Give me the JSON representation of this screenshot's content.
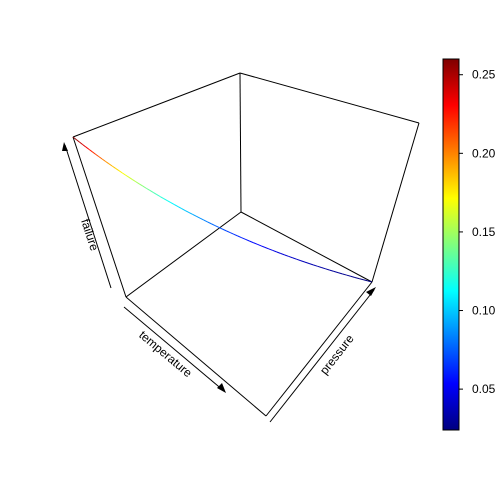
{
  "chart_data": {
    "type": "line",
    "title": "",
    "axes": {
      "x": {
        "label": "temperature"
      },
      "y": {
        "label": "pressure"
      },
      "z": {
        "label": "failure"
      }
    },
    "box": true,
    "grid": false,
    "series": [
      {
        "x": [
          0.0,
          0.0625,
          0.125,
          0.1875,
          0.25,
          0.3125,
          0.375,
          0.4375,
          0.5,
          0.5625,
          0.625,
          0.6875,
          0.75,
          0.8125,
          0.875,
          0.9375,
          1.0
        ],
        "failure": [
          0.26,
          0.228,
          0.198,
          0.172,
          0.148,
          0.127,
          0.109,
          0.093,
          0.079,
          0.067,
          0.057,
          0.049,
          0.042,
          0.036,
          0.031,
          0.027,
          0.024
        ]
      }
    ],
    "colorbar": {
      "palette": "jet",
      "range": [
        0.024,
        0.26
      ],
      "ticks": [
        "0.05",
        "0.10",
        "0.15",
        "0.20",
        "0.25"
      ],
      "tick_values": [
        0.05,
        0.1,
        0.15,
        0.2,
        0.25
      ],
      "colors": [
        "#00007f",
        "#0000ff",
        "#007fff",
        "#00ffff",
        "#7fff7f",
        "#ffff00",
        "#ff7f00",
        "#ff0000",
        "#7f0000"
      ]
    }
  }
}
